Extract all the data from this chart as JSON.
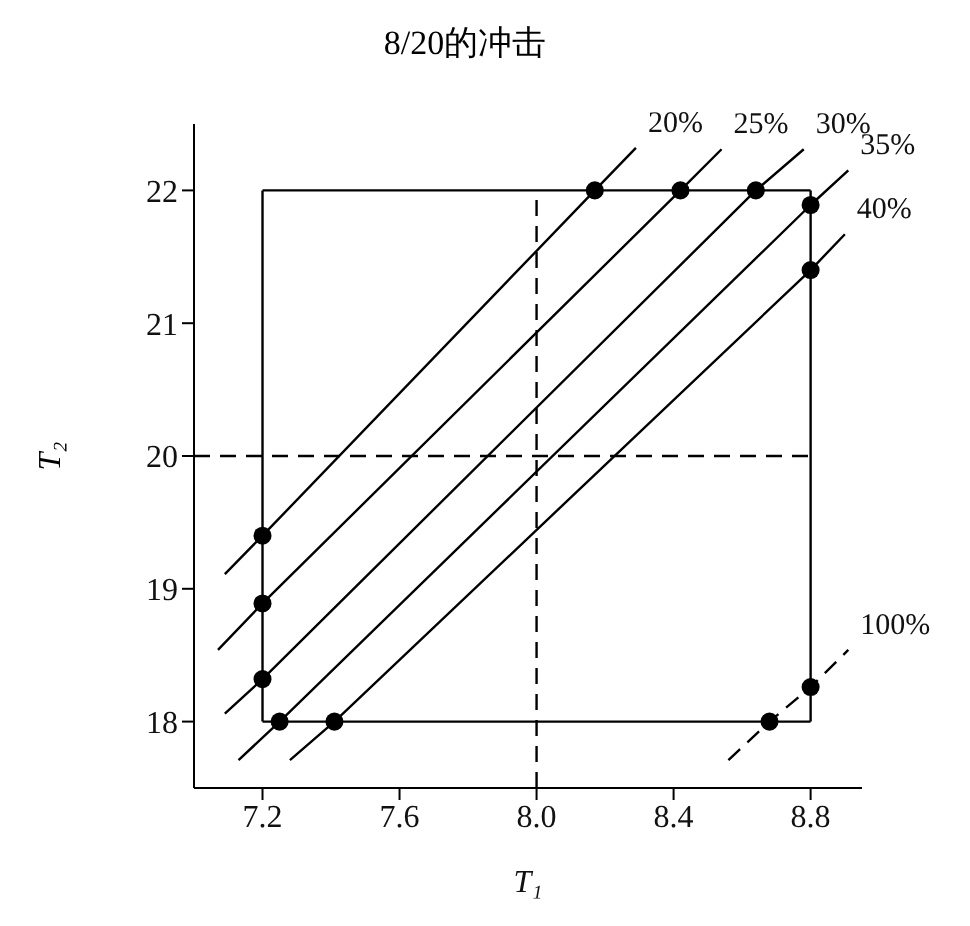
{
  "chart_data": {
    "type": "line",
    "title": "8/20的冲击",
    "xlabel": "T₁",
    "ylabel": "T₂",
    "xlim": [
      7.0,
      8.95
    ],
    "ylim": [
      17.5,
      22.5
    ],
    "xticks": [
      {
        "value": 7.2,
        "label": "7.2"
      },
      {
        "value": 7.6,
        "label": "7.6"
      },
      {
        "value": 8.0,
        "label": "8.0"
      },
      {
        "value": 8.4,
        "label": "8.4"
      },
      {
        "value": 8.8,
        "label": "8.8"
      }
    ],
    "yticks": [
      18,
      19,
      20,
      21,
      22
    ],
    "grid": false,
    "series": [
      {
        "name": "20%",
        "color": "#000000",
        "line_style": "solid",
        "x": [
          7.09,
          7.2,
          8.17,
          8.29
        ],
        "values": [
          19.11,
          19.4,
          22,
          22.32
        ]
      },
      {
        "name": "25%",
        "color": "#000000",
        "line_style": "solid",
        "x": [
          7.07,
          7.2,
          8.42,
          8.54
        ],
        "values": [
          18.54,
          18.89,
          22,
          22.31
        ]
      },
      {
        "name": "30%",
        "color": "#000000",
        "line_style": "solid",
        "x": [
          7.09,
          7.2,
          8.64,
          8.78
        ],
        "values": [
          18.06,
          18.32,
          22,
          22.31
        ]
      },
      {
        "name": "35%",
        "color": "#000000",
        "line_style": "solid",
        "x": [
          7.13,
          7.25,
          8.8,
          8.91
        ],
        "values": [
          17.71,
          18,
          21.89,
          22.15
        ]
      },
      {
        "name": "40%",
        "color": "#000000",
        "line_style": "solid",
        "x": [
          7.28,
          7.41,
          8.8,
          8.9
        ],
        "values": [
          17.71,
          18,
          21.4,
          21.67
        ]
      },
      {
        "name": "100%",
        "color": "#000000",
        "line_style": "dashed",
        "x": [
          8.56,
          8.68,
          8.8,
          8.91
        ],
        "values": [
          17.71,
          18,
          18.26,
          18.54
        ]
      },
      {
        "color": "#000000",
        "line_style": "solid",
        "x": [
          7.2,
          8.8
        ],
        "values": [
          18,
          18
        ]
      },
      {
        "color": "#000000",
        "line_style": "solid",
        "x": [
          7.2,
          8.8
        ],
        "values": [
          22,
          22
        ]
      },
      {
        "color": "#000000",
        "line_style": "solid",
        "x": [
          7.2,
          7.2
        ],
        "values": [
          18,
          22
        ]
      },
      {
        "color": "#000000",
        "line_style": "solid",
        "x": [
          8.8,
          8.8
        ],
        "values": [
          18,
          22
        ]
      },
      {
        "color": "#000000",
        "line_style": "dashed",
        "x": [
          8.0,
          8.0
        ],
        "values": [
          17.5,
          22
        ]
      },
      {
        "color": "#000000",
        "line_style": "dashed",
        "x": [
          7.0,
          8.8
        ],
        "values": [
          20,
          20
        ]
      },
      {
        "type": "scatter",
        "color": "#000000",
        "marker": "circle",
        "x": [
          7.2,
          7.2,
          7.2,
          7.25,
          7.41,
          8.17,
          8.42,
          8.64,
          8.8,
          8.8,
          8.68,
          8.8
        ],
        "values": [
          19.4,
          18.89,
          18.32,
          18,
          18,
          22,
          22,
          22,
          21.89,
          21.4,
          18,
          18.26
        ]
      }
    ]
  }
}
